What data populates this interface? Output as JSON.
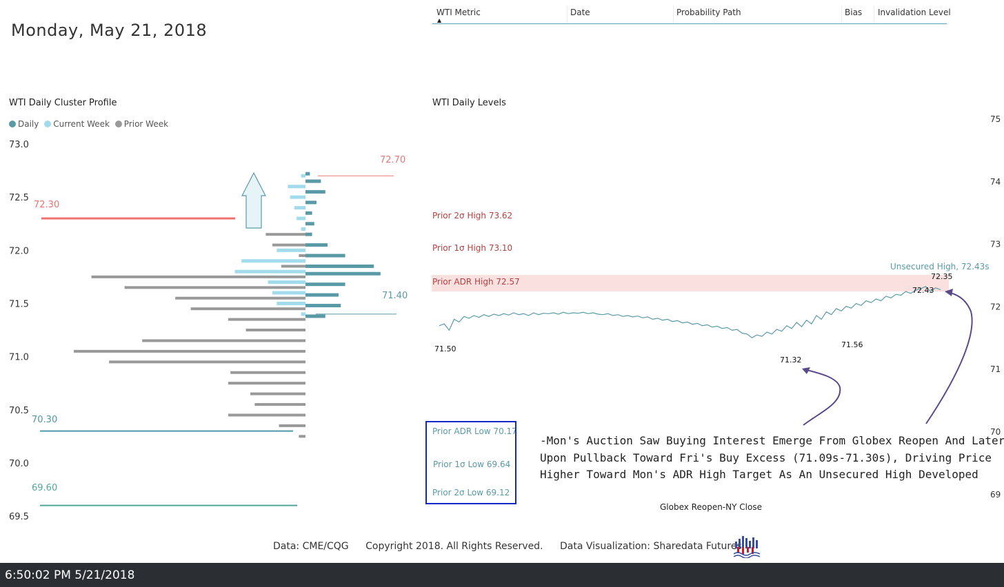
{
  "page": {
    "title": "Monday, May 21, 2018",
    "timestamp": "6:50:02 PM 5/21/2018"
  },
  "metric_table": {
    "headers": [
      "WTI Metric",
      "Date",
      "Probability Path",
      "Bias",
      "Invalidation Level"
    ],
    "sort_indicator": "▲"
  },
  "chart_data": [
    {
      "type": "bar",
      "title": "WTI Daily Cluster Profile",
      "legend": [
        "Daily",
        "Current Week",
        "Prior Week"
      ],
      "legend_position": "top-left",
      "orientation": "horizontal-diverging",
      "ylim": [
        69.5,
        73.0
      ],
      "yticks": [
        "73.0",
        "72.5",
        "72.0",
        "71.5",
        "71.0",
        "70.5",
        "70.0",
        "69.5"
      ],
      "colors": {
        "Daily": "#5a9aa6",
        "Current Week": "#a2dcec",
        "Prior Week": "#999999"
      },
      "series": [
        {
          "name": "Prior Week",
          "direction": "left",
          "values": [
            {
              "price": 72.15,
              "size": 18
            },
            {
              "price": 72.05,
              "size": 15
            },
            {
              "price": 71.95,
              "size": 3
            },
            {
              "price": 71.85,
              "size": 11
            },
            {
              "price": 71.75,
              "size": 97
            },
            {
              "price": 71.65,
              "size": 82
            },
            {
              "price": 71.55,
              "size": 59
            },
            {
              "price": 71.45,
              "size": 52
            },
            {
              "price": 71.35,
              "size": 35
            },
            {
              "price": 71.25,
              "size": 27
            },
            {
              "price": 71.15,
              "size": 74
            },
            {
              "price": 71.05,
              "size": 105
            },
            {
              "price": 70.95,
              "size": 89
            },
            {
              "price": 70.85,
              "size": 34
            },
            {
              "price": 70.75,
              "size": 35
            },
            {
              "price": 70.65,
              "size": 25
            },
            {
              "price": 70.55,
              "size": 23
            },
            {
              "price": 70.45,
              "size": 35
            },
            {
              "price": 70.35,
              "size": 12
            },
            {
              "price": 70.25,
              "size": 3
            }
          ]
        },
        {
          "name": "Current Week",
          "direction": "left",
          "values": [
            {
              "price": 72.7,
              "size": 2
            },
            {
              "price": 72.6,
              "size": 8
            },
            {
              "price": 72.5,
              "size": 7
            },
            {
              "price": 72.4,
              "size": 5
            },
            {
              "price": 72.3,
              "size": 4
            },
            {
              "price": 72.2,
              "size": 2
            },
            {
              "price": 72.0,
              "size": 13
            },
            {
              "price": 71.9,
              "size": 29
            },
            {
              "price": 71.8,
              "size": 32
            },
            {
              "price": 71.7,
              "size": 17
            },
            {
              "price": 71.6,
              "size": 15
            },
            {
              "price": 71.5,
              "size": 13
            },
            {
              "price": 71.4,
              "size": 2
            }
          ]
        },
        {
          "name": "Daily",
          "direction": "right",
          "values": [
            {
              "price": 72.72,
              "size": 2
            },
            {
              "price": 72.65,
              "size": 7
            },
            {
              "price": 72.55,
              "size": 9
            },
            {
              "price": 72.45,
              "size": 5
            },
            {
              "price": 72.35,
              "size": 3
            },
            {
              "price": 72.25,
              "size": 4
            },
            {
              "price": 72.15,
              "size": 3
            },
            {
              "price": 72.05,
              "size": 10
            },
            {
              "price": 71.95,
              "size": 18
            },
            {
              "price": 71.85,
              "size": 31
            },
            {
              "price": 71.78,
              "size": 34
            },
            {
              "price": 71.68,
              "size": 18
            },
            {
              "price": 71.58,
              "size": 15
            },
            {
              "price": 71.48,
              "size": 16
            },
            {
              "price": 71.38,
              "size": 9
            }
          ]
        }
      ],
      "reference_lines": [
        {
          "label": "72.70",
          "value": 72.7,
          "color": "#e87878"
        },
        {
          "label": "72.30",
          "value": 72.3,
          "color": "#f07070"
        },
        {
          "label": "71.40",
          "value": 71.4,
          "color": "#5a9aa6"
        },
        {
          "label": "70.30",
          "value": 70.3,
          "color": "#4e96a8"
        },
        {
          "label": "69.60",
          "value": 69.6,
          "color": "#4ea89a"
        }
      ]
    },
    {
      "type": "line",
      "title": "WTI Daily Levels",
      "xlabel": "Globex Reopen-NY Close",
      "y_axis_ticks": [
        "75",
        "74",
        "73",
        "72",
        "71",
        "70",
        "69"
      ],
      "series": [
        {
          "values": [
            71.58,
            71.62,
            71.48,
            71.72,
            71.66,
            71.78,
            71.74,
            71.8,
            71.76,
            71.82,
            71.78,
            71.83,
            71.8,
            71.84,
            71.81,
            71.86,
            71.82,
            71.84,
            71.8,
            71.86,
            71.82,
            71.85,
            71.84,
            71.86,
            71.83,
            71.87,
            71.84,
            71.86,
            71.85,
            71.87,
            71.84,
            71.86,
            71.83,
            71.82,
            71.84,
            71.8,
            71.82,
            71.78,
            71.8,
            71.77,
            71.79,
            71.75,
            71.77,
            71.72,
            71.74,
            71.7,
            71.72,
            71.67,
            71.69,
            71.64,
            71.66,
            71.61,
            71.63,
            71.58,
            71.6,
            71.55,
            71.57,
            71.52,
            71.54,
            71.48,
            71.5,
            71.42,
            71.4,
            71.32,
            71.38,
            71.35,
            71.44,
            71.4,
            71.5,
            71.46,
            71.58,
            71.52,
            71.65,
            71.56,
            71.7,
            71.62,
            71.8,
            71.72,
            71.88,
            71.82,
            71.95,
            71.9,
            72.0,
            71.96,
            72.06,
            72.02,
            72.12,
            72.08,
            72.16,
            72.12,
            72.22,
            72.18,
            72.26,
            72.24,
            72.32,
            72.28,
            72.35,
            72.38,
            72.43,
            72.32,
            72.4,
            72.36
          ]
        }
      ],
      "annotations": {
        "price_labels": [
          "71.50",
          "71.32",
          "71.56",
          "72.43",
          "72.35"
        ],
        "high_label": "Unsecured High, 72.43s",
        "levels": [
          {
            "label": "Prior 2σ High 73.62",
            "color": "#b34040"
          },
          {
            "label": "Prior 1σ High 73.10",
            "color": "#b34040"
          },
          {
            "label": "Prior ADR High 72.57",
            "color": "#b34040",
            "band_color": "#fbe0e0"
          },
          {
            "label": "Prior ADR Low 70.17",
            "color": "#5a9aa6"
          },
          {
            "label": "Prior 1σ Low 69.64",
            "color": "#5a9aa6"
          },
          {
            "label": "Prior 2σ Low 69.12",
            "color": "#5a9aa6"
          }
        ]
      }
    }
  ],
  "commentary": [
    "-Mon's Auction Saw Buying Interest Emerge From Globex Reopen And Later",
    "Upon Pullback Toward Fri's Buy Excess (71.09s-71.30s), Driving Price",
    "Higher Toward Mon's ADR High Target As An Unsecured High Developed"
  ],
  "footer": {
    "data_source": "Data: CME/CQG",
    "copyright": "Copyright 2018. All Rights Reserved.",
    "visualization": "Data Visualization: Sharedata Futures"
  },
  "icons": {
    "direction": "up-arrow-icon",
    "pointer": "curved-arrow-icon",
    "brand": "sharedata-logo-icon"
  },
  "colors": {
    "annotation_purple": "#5b4a8a",
    "box_border": "#1428c8",
    "statusbar": "#2b2f33"
  }
}
